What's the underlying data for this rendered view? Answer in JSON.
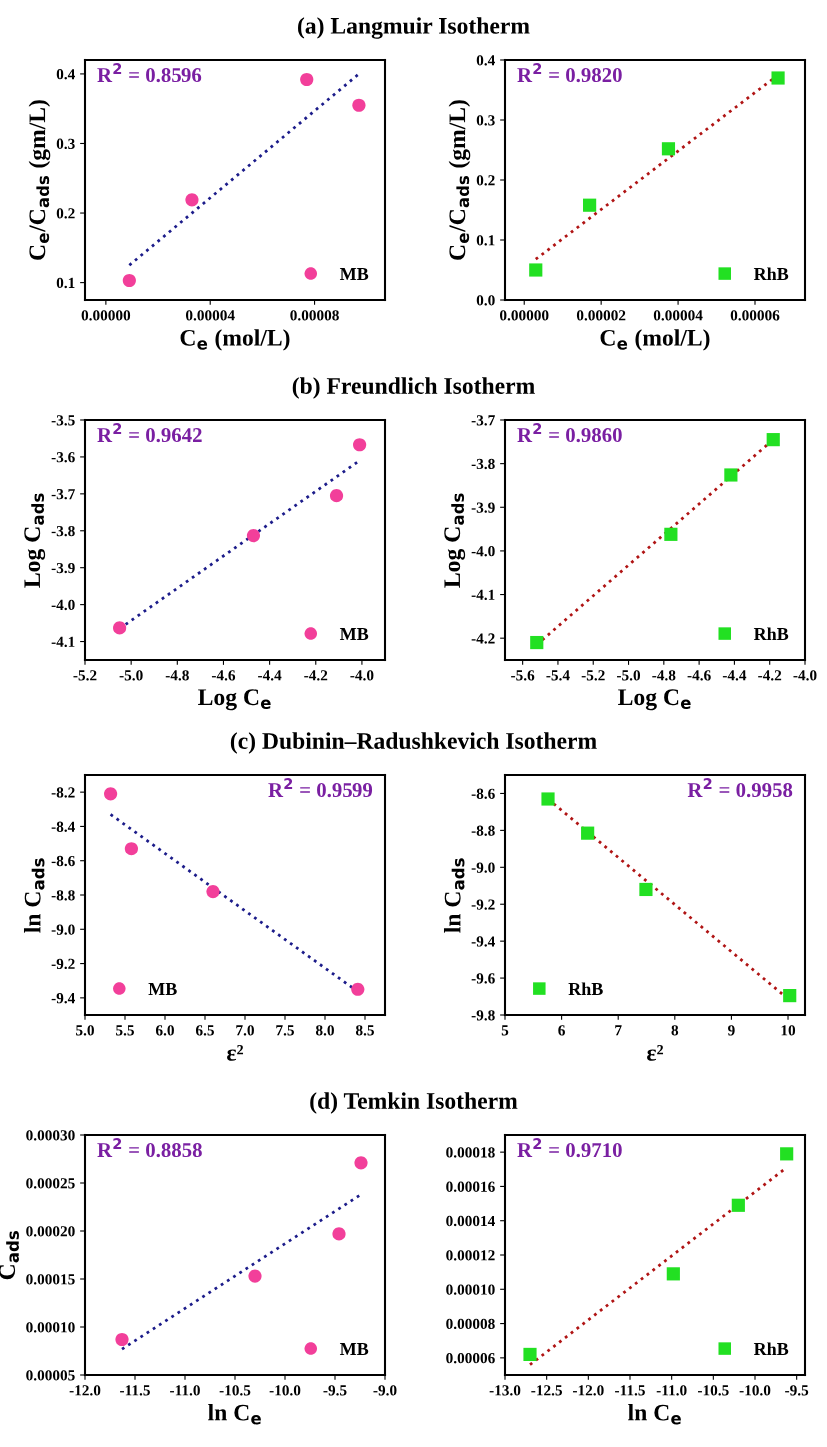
{
  "chart_data": [
    {
      "type": "scatter",
      "title": "(a) Langmuir Isotherm",
      "xlabel": "C$_{e}$ (mol/L)",
      "ylabel": "C$_{e}$/C$_{ads}$ (gm/L)",
      "annotations": [
        "R$^{2}$ = 0.8596"
      ],
      "legend": "bottom right",
      "xlim": [
        -8e-06,
        0.000107
      ],
      "xticks": [
        {
          "value": 0,
          "label": "0.00000"
        },
        {
          "value": 4e-05,
          "label": "0.00004"
        },
        {
          "value": 8e-05,
          "label": "0.00008"
        }
      ],
      "ylim": [
        0.075,
        0.42
      ],
      "yticks": [
        0.1,
        0.2,
        0.3,
        0.4
      ],
      "series": [
        {
          "name": "MB",
          "marker": "circle",
          "color": "#f23f9a",
          "x": [
            9e-06,
            3.3e-05,
            7.7e-05,
            9.7e-05
          ],
          "values": [
            0.103,
            0.219,
            0.392,
            0.355
          ]
        },
        {
          "type": "line",
          "line_style": "dotted",
          "color": "#1c1c8a",
          "x": [
            9e-06,
            9.7e-05
          ],
          "values": [
            0.125,
            0.4
          ]
        }
      ]
    },
    {
      "type": "scatter",
      "xlabel": "C$_{e}$ (mol/L)",
      "ylabel": "C$_{e}$/C$_{ads}$ (gm/L)",
      "annotations": [
        "R$^{2}$ = 0.9820"
      ],
      "legend": "bottom right",
      "xlim": [
        -5e-06,
        7.3e-05
      ],
      "xticks": [
        {
          "value": 0,
          "label": "0.00000"
        },
        {
          "value": 2e-05,
          "label": "0.00002"
        },
        {
          "value": 4e-05,
          "label": "0.00004"
        },
        {
          "value": 6e-05,
          "label": "0.00006"
        }
      ],
      "ylim": [
        0,
        0.4
      ],
      "yticks": [
        {
          "value": 0,
          "label": "0.0"
        },
        0.1,
        0.2,
        0.3,
        0.4
      ],
      "series": [
        {
          "name": "RhB",
          "marker": "square",
          "color": "#22e022",
          "x": [
            3e-06,
            1.7e-05,
            3.75e-05,
            6.6e-05
          ],
          "values": [
            0.05,
            0.158,
            0.252,
            0.37
          ]
        },
        {
          "type": "line",
          "line_style": "dotted",
          "color": "#b01414",
          "x": [
            3e-06,
            6.6e-05
          ],
          "values": [
            0.068,
            0.375
          ]
        }
      ]
    },
    {
      "type": "scatter",
      "title": "(b) Freundlich Isotherm",
      "xlabel": "Log C$_{e}$",
      "ylabel": "Log C$_{ads}$",
      "annotations": [
        "R$^{2}$ = 0.9642"
      ],
      "legend": "bottom right",
      "xlim": [
        -5.2,
        -3.9
      ],
      "xticks": [
        -5.2,
        {
          "value": -5,
          "label": "-5.0"
        },
        -4.8,
        -4.6,
        -4.4,
        -4.2,
        {
          "value": -4,
          "label": "-4.0"
        }
      ],
      "ylim": [
        -4.15,
        -3.5
      ],
      "yticks": [
        -4.1,
        {
          "value": -4,
          "label": "-4.0"
        },
        -3.9,
        -3.8,
        -3.7,
        -3.6,
        -3.5
      ],
      "series": [
        {
          "name": "MB",
          "marker": "circle",
          "color": "#f23f9a",
          "x": [
            -5.05,
            -4.47,
            -4.11,
            -4.01
          ],
          "values": [
            -4.063,
            -3.813,
            -3.705,
            -3.567
          ]
        },
        {
          "type": "line",
          "line_style": "dotted",
          "color": "#1c1c8a",
          "x": [
            -5.05,
            -4.01
          ],
          "values": [
            -4.065,
            -3.61
          ]
        }
      ]
    },
    {
      "type": "scatter",
      "xlabel": "Log C$_{e}$",
      "ylabel": "Log C$_{ads}$",
      "annotations": [
        "R$^{2}$ = 0.9860"
      ],
      "legend": "bottom right",
      "xlim": [
        -5.7,
        -4.0
      ],
      "xticks": [
        -5.6,
        -5.4,
        -5.2,
        {
          "value": -5,
          "label": "-5.0"
        },
        -4.8,
        -4.6,
        -4.4,
        -4.2,
        {
          "value": -4,
          "label": "-4.0"
        }
      ],
      "ylim": [
        -4.25,
        -3.7
      ],
      "yticks": [
        -4.2,
        -4.1,
        {
          "value": -4,
          "label": "-4.0"
        },
        -3.9,
        -3.8,
        -3.7
      ],
      "series": [
        {
          "name": "RhB",
          "marker": "square",
          "color": "#22e022",
          "x": [
            -5.52,
            -4.76,
            -4.42,
            -4.18
          ],
          "values": [
            -4.21,
            -3.962,
            -3.826,
            -3.745
          ]
        },
        {
          "type": "line",
          "line_style": "dotted",
          "color": "#b01414",
          "x": [
            -5.52,
            -4.18
          ],
          "values": [
            -4.215,
            -3.745
          ]
        }
      ]
    },
    {
      "type": "scatter",
      "title": "(c) Dubinin–Radushkevich Isotherm",
      "xlabel": "ε²",
      "ylabel": "ln C$_{ads}$",
      "annotations": [
        "R$^{2}$ = 0.9599"
      ],
      "legend": "bottom left",
      "xlim": [
        5.0,
        8.75
      ],
      "xticks": [
        {
          "value": 5,
          "label": "5.0"
        },
        5.5,
        {
          "value": 6,
          "label": "6.0"
        },
        6.5,
        {
          "value": 7,
          "label": "7.0"
        },
        7.5,
        {
          "value": 8,
          "label": "8.0"
        },
        8.5
      ],
      "ylim": [
        -9.5,
        -8.1
      ],
      "yticks": [
        -9.4,
        -9.2,
        {
          "value": -9,
          "label": "-9.0"
        },
        -8.8,
        -8.6,
        -8.4,
        -8.2
      ],
      "series": [
        {
          "name": "MB",
          "marker": "circle",
          "color": "#f23f9a",
          "x": [
            5.32,
            5.58,
            6.6,
            8.41
          ],
          "values": [
            -8.21,
            -8.53,
            -8.78,
            -9.35
          ]
        },
        {
          "type": "line",
          "line_style": "dotted",
          "color": "#1c1c8a",
          "x": [
            5.32,
            8.4
          ],
          "values": [
            -8.33,
            -9.36
          ]
        }
      ]
    },
    {
      "type": "scatter",
      "xlabel": "ε²",
      "ylabel": "ln C$_{ads}$",
      "annotations": [
        "R$^{2}$ = 0.9958"
      ],
      "legend": "bottom left",
      "xlim": [
        5,
        10.3
      ],
      "xticks": [
        5,
        6,
        7,
        8,
        9,
        10
      ],
      "ylim": [
        -9.8,
        -8.5
      ],
      "yticks": [
        -9.8,
        -9.6,
        -9.4,
        -9.2,
        {
          "value": -9,
          "label": "-9.0"
        },
        -8.8,
        -8.6
      ],
      "series": [
        {
          "name": "RhB",
          "marker": "square",
          "color": "#22e022",
          "x": [
            5.76,
            6.46,
            7.49,
            10.03
          ],
          "values": [
            -8.63,
            -8.815,
            -9.12,
            -9.695
          ]
        },
        {
          "type": "line",
          "line_style": "dotted",
          "color": "#b01414",
          "x": [
            5.76,
            10.03
          ],
          "values": [
            -8.63,
            -9.72
          ]
        }
      ]
    },
    {
      "type": "scatter",
      "title": "(d) Temkin Isotherm",
      "xlabel": "ln C$_{e}$",
      "ylabel": "C$_{ads}$",
      "annotations": [
        "R$^{2}$ = 0.8858"
      ],
      "legend": "bottom right",
      "xlim": [
        -12,
        -9
      ],
      "xticks": [
        {
          "value": -12,
          "label": "-12.0"
        },
        -11.5,
        {
          "value": -11,
          "label": "-11.0"
        },
        -10.5,
        {
          "value": -10,
          "label": "-10.0"
        },
        -9.5,
        {
          "value": -9,
          "label": "-9.0"
        }
      ],
      "ylim": [
        5e-05,
        0.0003
      ],
      "yticks": [
        {
          "value": 5e-05,
          "label": "0.00005"
        },
        {
          "value": 0.0001,
          "label": "0.00010"
        },
        {
          "value": 0.00015,
          "label": "0.00015"
        },
        {
          "value": 0.0002,
          "label": "0.00020"
        },
        {
          "value": 0.00025,
          "label": "0.00025"
        },
        {
          "value": 0.0003,
          "label": "0.00030"
        }
      ],
      "series": [
        {
          "name": "MB",
          "marker": "circle",
          "color": "#f23f9a",
          "x": [
            -11.63,
            -10.3,
            -9.46,
            -9.24
          ],
          "values": [
            8.7e-05,
            0.000153,
            0.000197,
            0.000271
          ]
        },
        {
          "type": "line",
          "line_style": "dotted",
          "color": "#1c1c8a",
          "x": [
            -11.63,
            -9.24
          ],
          "values": [
            7.7e-05,
            0.000238
          ]
        }
      ]
    },
    {
      "type": "scatter",
      "xlabel": "ln C$_{e}$",
      "annotations": [
        "R$^{2}$ = 0.9710"
      ],
      "legend": "bottom right",
      "xlim": [
        -13,
        -9.4
      ],
      "xticks": [
        {
          "value": -13,
          "label": "-13.0"
        },
        -12.5,
        {
          "value": -12,
          "label": "-12.0"
        },
        -11.5,
        {
          "value": -11,
          "label": "-11.0"
        },
        -10.5,
        {
          "value": -10,
          "label": "-10.0"
        },
        -9.5
      ],
      "ylim": [
        5e-05,
        0.00019
      ],
      "yticks": [
        {
          "value": 6e-05,
          "label": "0.00006"
        },
        {
          "value": 8e-05,
          "label": "0.00008"
        },
        {
          "value": 0.0001,
          "label": "0.00010"
        },
        {
          "value": 0.00012,
          "label": "0.00012"
        },
        {
          "value": 0.00014,
          "label": "0.00014"
        },
        {
          "value": 0.00016,
          "label": "0.00016"
        },
        {
          "value": 0.00018,
          "label": "0.00018"
        }
      ],
      "series": [
        {
          "name": "RhB",
          "marker": "square",
          "color": "#22e022",
          "x": [
            -12.7,
            -10.98,
            -10.2,
            -9.62
          ],
          "values": [
            6.2e-05,
            0.000109,
            0.000149,
            0.000179
          ]
        },
        {
          "type": "line",
          "line_style": "dotted",
          "color": "#b01414",
          "x": [
            -12.7,
            -9.62
          ],
          "values": [
            5.6e-05,
            0.000171
          ]
        }
      ]
    }
  ]
}
